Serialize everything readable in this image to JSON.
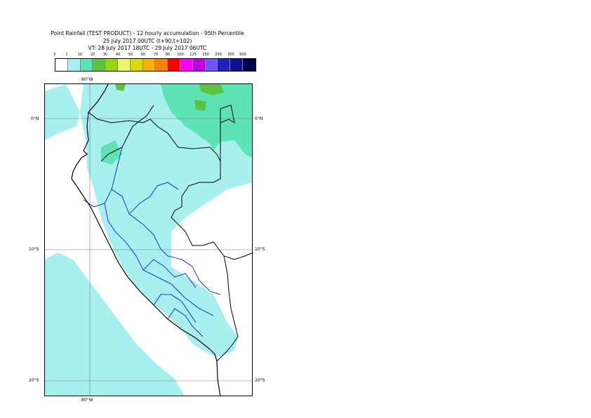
{
  "title": {
    "line1": "Point Rainfall (TEST PRODUCT) - 12 hourly accumulation - 95th Percentile",
    "line2": "25 July 2017 00UTC (t+90,t+102)",
    "line3": "VT: 28 July 2017 18UTC - 29 July 2017 06UTC"
  },
  "legend": {
    "labels": [
      "0",
      "1",
      "10",
      "20",
      "30",
      "40",
      "50",
      "60",
      "70",
      "80",
      "100",
      "125",
      "150",
      "200",
      "300",
      "500"
    ],
    "colors": [
      "#ffffff",
      "#a8f0f0",
      "#5ee3b5",
      "#5ac341",
      "#94d80a",
      "#ecf76e",
      "#d8d80a",
      "#f7b20a",
      "#ff7f00",
      "#ff0000",
      "#ff00ff",
      "#c000e0",
      "#7050ff",
      "#2020c0",
      "#101090",
      "#000050"
    ]
  },
  "axes": {
    "top_lon": "80°W",
    "bottom_lon": "80°W",
    "lat_0_left": "0°N",
    "lat_0_right": "0°N",
    "lat_10_left": "10°S",
    "lat_10_right": "10°S",
    "lat_20_left": "20°S",
    "lat_20_right": "20°S"
  },
  "colors": {
    "light_cyan": "#a8f0f0",
    "mint": "#5ee3b5",
    "green": "#5ac341",
    "border": "#000000",
    "regions": "#0000cc"
  }
}
